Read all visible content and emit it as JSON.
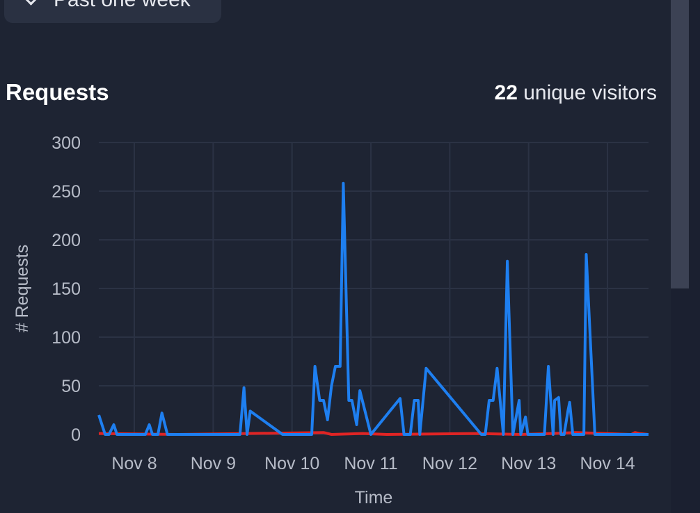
{
  "range_selector": {
    "label": "Past one week"
  },
  "header": {
    "title": "Requests",
    "visitor_count": "22",
    "visitor_suffix": "unique visitors"
  },
  "chart_data": {
    "type": "line",
    "xlabel": "Time",
    "ylabel": "# Requests",
    "ylim": [
      0,
      300
    ],
    "xlim": [
      7.55,
      14.52
    ],
    "yticks": [
      0,
      50,
      100,
      150,
      200,
      250,
      300
    ],
    "xticks": [
      {
        "value": 8,
        "label": "Nov 8"
      },
      {
        "value": 9,
        "label": "Nov 9"
      },
      {
        "value": 10,
        "label": "Nov 10"
      },
      {
        "value": 11,
        "label": "Nov 11"
      },
      {
        "value": 12,
        "label": "Nov 12"
      },
      {
        "value": 13,
        "label": "Nov 13"
      },
      {
        "value": 14,
        "label": "Nov 14"
      }
    ],
    "grid": true,
    "series": [
      {
        "color": "#1e7ff0",
        "x": [
          7.55,
          7.63,
          7.68,
          7.74,
          7.78,
          7.89,
          8.14,
          8.19,
          8.23,
          8.3,
          8.35,
          8.42,
          8.55,
          9.26,
          9.34,
          9.39,
          9.43,
          9.47,
          9.88,
          10.12,
          10.17,
          10.21,
          10.25,
          10.29,
          10.35,
          10.4,
          10.45,
          10.5,
          10.55,
          10.61,
          10.65,
          10.72,
          10.76,
          10.82,
          10.86,
          11.0,
          11.37,
          11.42,
          11.47,
          11.5,
          11.55,
          11.6,
          11.62,
          11.7,
          12.4,
          12.45,
          12.5,
          12.55,
          12.6,
          12.68,
          12.73,
          12.8,
          12.88,
          12.9,
          12.96,
          12.99,
          13.05,
          13.2,
          13.25,
          13.31,
          13.33,
          13.38,
          13.41,
          13.45,
          13.5,
          13.52,
          13.56,
          13.65,
          13.7,
          13.73,
          13.84,
          13.86,
          14.06,
          14.12,
          14.16,
          14.22,
          14.3,
          14.42,
          14.52
        ],
        "y": [
          20,
          0,
          0,
          10,
          0,
          0,
          0,
          10,
          0,
          0,
          22,
          0,
          0,
          0,
          0,
          48,
          0,
          24,
          0,
          0,
          0,
          0,
          0,
          70,
          35,
          35,
          15,
          50,
          70,
          70,
          258,
          35,
          35,
          10,
          45,
          0,
          37,
          0,
          0,
          0,
          35,
          35,
          0,
          68,
          0,
          0,
          35,
          35,
          68,
          0,
          178,
          0,
          35,
          0,
          18,
          0,
          0,
          0,
          70,
          0,
          35,
          38,
          0,
          0,
          25,
          33,
          0,
          0,
          0,
          185,
          0,
          0,
          0,
          0,
          0,
          0,
          0,
          0,
          0
        ]
      },
      {
        "color": "#e02424",
        "x": [
          7.55,
          8.55,
          10.4,
          10.45,
          10.5,
          10.9,
          11.2,
          12.35,
          12.9,
          13.3,
          13.6,
          14.3,
          14.35,
          14.4,
          14.52
        ],
        "y": [
          1,
          0,
          2,
          1,
          0,
          1,
          0,
          1,
          0,
          1,
          2,
          0,
          2,
          1,
          0
        ]
      }
    ]
  }
}
